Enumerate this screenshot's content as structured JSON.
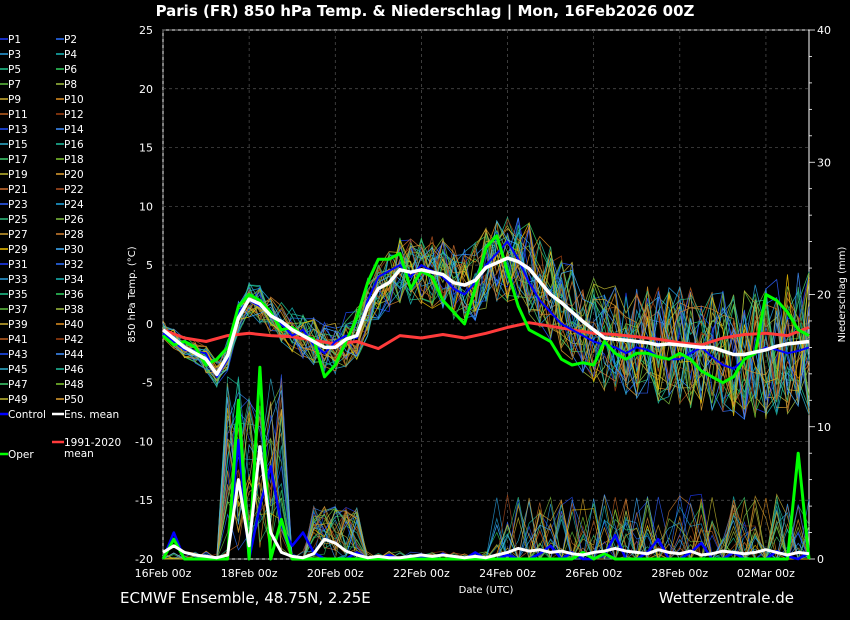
{
  "chart_data": {
    "type": "line",
    "title": "Paris  (FR)  850 hPa Temp. & Niederschlag | Mon, 16Feb2026 00Z",
    "ylabel_left": "850 hPa Temp. (°C)",
    "ylabel_right": "Niederschlag (mm)",
    "xlabel": "Date (UTC)",
    "ylim_left": [
      -20,
      25
    ],
    "ylim_right": [
      0,
      40
    ],
    "yticks_left": [
      25,
      20,
      15,
      10,
      5,
      0,
      -5,
      -10,
      -15,
      -20
    ],
    "yticks_right": [
      40,
      30,
      20,
      10,
      0
    ],
    "x_hours_range": [
      0,
      360
    ],
    "xticks": [
      {
        "h": 0,
        "label": "16Feb 00z"
      },
      {
        "h": 48,
        "label": "18Feb 00z"
      },
      {
        "h": 96,
        "label": "20Feb 00z"
      },
      {
        "h": 144,
        "label": "22Feb 00z"
      },
      {
        "h": 192,
        "label": "24Feb 00z"
      },
      {
        "h": 240,
        "label": "26Feb 00z"
      },
      {
        "h": 288,
        "label": "28Feb 00z"
      },
      {
        "h": 336,
        "label": "02Mar 00z"
      }
    ],
    "series": [
      {
        "name": "Ens. mean",
        "color": "#ffffff",
        "hours": [
          0,
          12,
          24,
          30,
          36,
          42,
          48,
          54,
          60,
          66,
          72,
          78,
          84,
          90,
          96,
          102,
          108,
          114,
          120,
          126,
          132,
          138,
          144,
          150,
          156,
          162,
          168,
          174,
          180,
          186,
          192,
          198,
          204,
          210,
          216,
          222,
          228,
          234,
          240,
          246,
          252,
          258,
          264,
          270,
          276,
          282,
          288,
          294,
          300,
          306,
          312,
          318,
          324,
          330,
          336,
          342,
          348,
          354,
          360
        ],
        "values": [
          -0.5,
          -2.0,
          -3.0,
          -4.3,
          -2.7,
          0.5,
          2.1,
          1.7,
          0.7,
          0.2,
          -0.5,
          -1.0,
          -1.5,
          -2.0,
          -2.0,
          -1.3,
          -1.0,
          1.5,
          3.0,
          3.5,
          4.6,
          4.4,
          4.6,
          4.4,
          4.2,
          3.5,
          3.3,
          3.7,
          4.8,
          5.2,
          5.6,
          5.3,
          4.7,
          3.6,
          2.5,
          1.8,
          1.0,
          0.2,
          -0.5,
          -1.2,
          -1.3,
          -1.4,
          -1.5,
          -1.6,
          -1.8,
          -1.7,
          -1.8,
          -1.9,
          -2.0,
          -2.0,
          -2.3,
          -2.6,
          -2.6,
          -2.4,
          -2.2,
          -1.9,
          -1.7,
          -1.6,
          -1.5
        ]
      },
      {
        "name": "Oper",
        "color": "#00ff00",
        "hours": [
          0,
          6,
          12,
          18,
          24,
          30,
          36,
          42,
          48,
          54,
          60,
          66,
          72,
          78,
          84,
          90,
          96,
          102,
          108,
          114,
          120,
          126,
          132,
          138,
          144,
          150,
          156,
          162,
          168,
          174,
          180,
          186,
          192,
          198,
          204,
          210,
          216,
          222,
          228,
          234,
          240,
          246,
          252,
          258,
          264,
          270,
          276,
          282,
          288,
          294,
          300,
          306,
          312,
          318,
          324,
          330,
          336,
          342,
          348,
          354,
          360
        ],
        "values": [
          -1.0,
          -1.8,
          -1.5,
          -2.0,
          -3.5,
          -3.0,
          -2.0,
          1.5,
          2.5,
          2.0,
          1.0,
          -0.5,
          -0.3,
          -1.0,
          -1.3,
          -4.5,
          -3.5,
          -1.5,
          0.5,
          3.5,
          5.5,
          5.5,
          6.0,
          3.0,
          4.5,
          4.0,
          2.0,
          1.0,
          0.0,
          3.0,
          6.5,
          7.5,
          4.5,
          1.5,
          -0.5,
          -1.0,
          -1.5,
          -3.0,
          -3.5,
          -3.3,
          -3.5,
          -1.5,
          -2.5,
          -3.0,
          -2.5,
          -2.5,
          -2.8,
          -3.0,
          -2.5,
          -3.0,
          -4.0,
          -4.5,
          -5.0,
          -4.5,
          -3.0,
          -2.5,
          2.5,
          2.0,
          1.0,
          -0.5,
          -1.0
        ]
      },
      {
        "name": "Control",
        "color": "#0000ff",
        "hours": [
          0,
          12,
          24,
          30,
          36,
          42,
          48,
          54,
          60,
          66,
          72,
          78,
          84,
          90,
          96,
          102,
          108,
          114,
          120,
          126,
          132,
          138,
          144,
          150,
          156,
          162,
          168,
          174,
          180,
          186,
          192,
          198,
          204,
          210,
          216,
          222,
          228,
          234,
          240,
          246,
          252,
          258,
          264,
          270,
          276,
          282,
          288,
          294,
          300,
          306,
          312,
          318,
          324,
          330,
          336,
          342,
          348,
          354,
          360
        ],
        "values": [
          -0.8,
          -2.2,
          -2.5,
          -4.5,
          -3.0,
          1.0,
          2.0,
          1.5,
          1.0,
          0.0,
          -1.0,
          -0.5,
          -1.8,
          -2.5,
          -1.5,
          -1.0,
          -1.2,
          2.0,
          4.0,
          4.5,
          5.0,
          4.0,
          5.0,
          4.5,
          4.0,
          3.0,
          2.5,
          3.5,
          5.0,
          6.0,
          7.0,
          5.5,
          3.5,
          2.0,
          1.0,
          0.0,
          -0.5,
          -1.0,
          -1.5,
          -1.8,
          -2.0,
          -2.5,
          -2.0,
          -2.2,
          -2.8,
          -3.0,
          -3.0,
          -2.5,
          -2.0,
          -2.8,
          -3.5,
          -3.8,
          -3.0,
          -2.5,
          -2.0,
          -2.2,
          -2.5,
          -2.3,
          -2.0
        ]
      },
      {
        "name": "1991-2020 mean",
        "color": "#ff3b3b",
        "hours": [
          0,
          12,
          24,
          36,
          48,
          60,
          72,
          84,
          96,
          108,
          120,
          132,
          144,
          156,
          168,
          180,
          192,
          204,
          216,
          228,
          240,
          252,
          264,
          276,
          288,
          300,
          312,
          324,
          336,
          348,
          360
        ],
        "values": [
          -0.5,
          -1.2,
          -1.5,
          -1.0,
          -0.8,
          -1.0,
          -1.1,
          -1.4,
          -1.7,
          -1.5,
          -2.1,
          -1.0,
          -1.2,
          -0.9,
          -1.2,
          -0.8,
          -0.3,
          0.1,
          -0.2,
          -0.5,
          -0.8,
          -0.9,
          -1.1,
          -1.3,
          -1.6,
          -1.8,
          -1.2,
          -0.9,
          -0.8,
          -1.0,
          -0.3
        ]
      },
      {
        "name": "Ens. mean precipitation",
        "color": "#ffffff",
        "hours": [
          0,
          6,
          12,
          18,
          24,
          30,
          36,
          42,
          48,
          54,
          60,
          66,
          72,
          78,
          84,
          90,
          96,
          102,
          108,
          114,
          120,
          126,
          132,
          138,
          144,
          150,
          156,
          162,
          168,
          174,
          180,
          186,
          192,
          198,
          204,
          210,
          216,
          222,
          228,
          234,
          240,
          246,
          252,
          258,
          264,
          270,
          276,
          282,
          288,
          294,
          300,
          306,
          312,
          318,
          324,
          330,
          336,
          342,
          348,
          354,
          360
        ],
        "values_mm": [
          0.5,
          1.0,
          0.5,
          0.3,
          0.2,
          0.1,
          0.3,
          6.0,
          1.0,
          8.5,
          2.0,
          0.5,
          0.2,
          0.1,
          0.4,
          1.5,
          1.2,
          0.6,
          0.3,
          0.1,
          0.2,
          0.1,
          0.1,
          0.2,
          0.3,
          0.2,
          0.3,
          0.2,
          0.1,
          0.2,
          0.1,
          0.3,
          0.5,
          0.8,
          0.6,
          0.7,
          0.5,
          0.6,
          0.4,
          0.3,
          0.5,
          0.6,
          0.8,
          0.6,
          0.5,
          0.4,
          0.7,
          0.5,
          0.4,
          0.6,
          0.3,
          0.4,
          0.6,
          0.5,
          0.4,
          0.5,
          0.7,
          0.5,
          0.3,
          0.5,
          0.4
        ]
      },
      {
        "name": "Oper precipitation",
        "color": "#00ff00",
        "hours": [
          0,
          6,
          12,
          18,
          24,
          30,
          36,
          42,
          48,
          54,
          60,
          66,
          72,
          78,
          84,
          90,
          96,
          102,
          108,
          114,
          120,
          126,
          132,
          138,
          144,
          150,
          156,
          162,
          168,
          174,
          180,
          186,
          192,
          198,
          204,
          210,
          216,
          222,
          228,
          234,
          240,
          246,
          252,
          258,
          264,
          270,
          276,
          282,
          288,
          294,
          300,
          306,
          312,
          318,
          324,
          330,
          336,
          342,
          348,
          354,
          360
        ],
        "values_mm": [
          0,
          1.5,
          0,
          0,
          0,
          0,
          0,
          12.0,
          0,
          14.5,
          0,
          3.0,
          0,
          0,
          0,
          0,
          0,
          0,
          0,
          0,
          0,
          0,
          0,
          0,
          0,
          0,
          0,
          0,
          0,
          0,
          0,
          0,
          0,
          0,
          0,
          0,
          0,
          0,
          0,
          0.5,
          0,
          0.4,
          0,
          0,
          0,
          0,
          0,
          0,
          0,
          0,
          0,
          0,
          0,
          0,
          0,
          0,
          0,
          0,
          0,
          8.0,
          0
        ]
      },
      {
        "name": "Control precipitation",
        "color": "#0000ff",
        "hours": [
          0,
          6,
          12,
          18,
          24,
          30,
          36,
          42,
          48,
          54,
          60,
          66,
          72,
          78,
          84,
          90,
          96,
          102,
          108,
          114,
          120,
          126,
          132,
          138,
          144,
          150,
          156,
          162,
          168,
          174,
          180,
          186,
          192,
          198,
          204,
          210,
          216,
          222,
          228,
          234,
          240,
          246,
          252,
          258,
          264,
          270,
          276,
          282,
          288,
          294,
          300,
          306,
          312,
          318,
          324,
          330,
          336,
          342,
          348,
          354,
          360
        ],
        "values_mm": [
          0,
          2.0,
          0,
          0,
          0,
          0,
          0,
          9.0,
          0,
          4.0,
          7.0,
          2.5,
          1.0,
          2.0,
          0.5,
          0,
          0,
          0,
          0.5,
          0,
          0,
          0.3,
          0,
          0,
          0.2,
          0,
          0.4,
          0,
          0,
          0.5,
          0,
          0,
          0.3,
          0,
          0,
          0.4,
          1.0,
          0,
          0.5,
          0,
          0,
          0.3,
          1.8,
          0,
          0,
          0.5,
          1.5,
          0,
          0,
          0.5,
          1.2,
          0,
          0,
          0.5,
          0,
          0,
          0,
          0.6,
          0.2,
          0,
          0.5
        ]
      }
    ],
    "legend": [
      [
        "P1",
        "P2"
      ],
      [
        "P3",
        "P4"
      ],
      [
        "P5",
        "P6"
      ],
      [
        "P7",
        "P8"
      ],
      [
        "P9",
        "P10"
      ],
      [
        "P11",
        "P12"
      ],
      [
        "P13",
        "P14"
      ],
      [
        "P15",
        "P16"
      ],
      [
        "P17",
        "P18"
      ],
      [
        "P19",
        "P20"
      ],
      [
        "P21",
        "P22"
      ],
      [
        "P23",
        "P24"
      ],
      [
        "P25",
        "P26"
      ],
      [
        "P27",
        "P28"
      ],
      [
        "P29",
        "P30"
      ],
      [
        "P31",
        "P32"
      ],
      [
        "P33",
        "P34"
      ],
      [
        "P35",
        "P36"
      ],
      [
        "P37",
        "P38"
      ],
      [
        "P39",
        "P40"
      ],
      [
        "P41",
        "P42"
      ],
      [
        "P43",
        "P44"
      ],
      [
        "P45",
        "P46"
      ],
      [
        "P47",
        "P48"
      ],
      [
        "P49",
        "P50"
      ]
    ],
    "legend_special": [
      {
        "label": "Control",
        "color": "#0000ff"
      },
      {
        "label": "Ens. mean",
        "color": "#ffffff"
      },
      {
        "label": "1991-2020\nmean",
        "color": "#ff3b3b"
      },
      {
        "label": "Oper",
        "color": "#00ff00"
      }
    ],
    "member_colors": [
      "#1f3cff",
      "#2a70ff",
      "#2aa0e0",
      "#18b8b8",
      "#20c890",
      "#30d060",
      "#60c040",
      "#a0c040",
      "#d0b030",
      "#e09020",
      "#c06020",
      "#a04010",
      "#2050ff",
      "#4090ff",
      "#30b0d0",
      "#20c0a0",
      "#40d070",
      "#80c830",
      "#c0b830",
      "#e0a030",
      "#d07030",
      "#b05020",
      "#3060ff",
      "#20a8e0",
      "#30c080",
      "#80c040",
      "#d0a030",
      "#d08030",
      "#f0c000",
      "#40b0ff"
    ],
    "footer_left": "ECMWF Ensemble, 48.75N, 2.25E",
    "footer_right": "Wetterzentrale.de"
  }
}
